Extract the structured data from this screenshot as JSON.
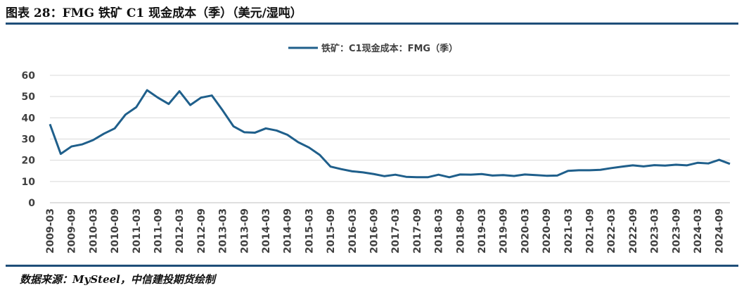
{
  "figure": {
    "title": "图表 28：FMG 铁矿 C1 现金成本（季）（美元/湿吨）",
    "source": "数据来源：MySteel，中信建投期货绘制"
  },
  "colors": {
    "line": "#1f5f8b",
    "grid": "#d9d9d9",
    "rule": "#1f4e79"
  },
  "chart_data": {
    "type": "line",
    "title": "",
    "xlabel": "",
    "ylabel": "",
    "ylim": [
      0,
      60
    ],
    "yticks": [
      0,
      10,
      20,
      30,
      40,
      50,
      60
    ],
    "grid": true,
    "legend_position": "top-center",
    "x_tick_labels": [
      "2009-03",
      "2009-09",
      "2010-03",
      "2010-09",
      "2011-03",
      "2011-09",
      "2012-03",
      "2012-09",
      "2013-03",
      "2013-09",
      "2014-03",
      "2014-09",
      "2015-03",
      "2015-09",
      "2016-03",
      "2016-09",
      "2017-03",
      "2017-09",
      "2018-03",
      "2018-09",
      "2019-03",
      "2019-09",
      "2020-03",
      "2020-09",
      "2021-03",
      "2021-09",
      "2022-03",
      "2022-09",
      "2023-03",
      "2023-09",
      "2024-03",
      "2024-09"
    ],
    "x": [
      "2009-03",
      "2009-06",
      "2009-09",
      "2009-12",
      "2010-03",
      "2010-06",
      "2010-09",
      "2010-12",
      "2011-03",
      "2011-06",
      "2011-09",
      "2011-12",
      "2012-03",
      "2012-06",
      "2012-09",
      "2012-12",
      "2013-03",
      "2013-06",
      "2013-09",
      "2013-12",
      "2014-03",
      "2014-06",
      "2014-09",
      "2014-12",
      "2015-03",
      "2015-06",
      "2015-09",
      "2015-12",
      "2016-03",
      "2016-06",
      "2016-09",
      "2016-12",
      "2017-03",
      "2017-06",
      "2017-09",
      "2017-12",
      "2018-03",
      "2018-06",
      "2018-09",
      "2018-12",
      "2019-03",
      "2019-06",
      "2019-09",
      "2019-12",
      "2020-03",
      "2020-06",
      "2020-09",
      "2020-12",
      "2021-03",
      "2021-06",
      "2021-09",
      "2021-12",
      "2022-03",
      "2022-06",
      "2022-09",
      "2022-12",
      "2023-03",
      "2023-06",
      "2023-09",
      "2023-12",
      "2024-03",
      "2024-06",
      "2024-09",
      "2024-12"
    ],
    "series": [
      {
        "name": "铁矿：C1现金成本：FMG（季）",
        "values": [
          37,
          23,
          26.5,
          27.5,
          29.5,
          32.5,
          35,
          41.5,
          45,
          53,
          49.5,
          46.5,
          52.5,
          46,
          49.5,
          50.5,
          43.5,
          36,
          33.2,
          33,
          35,
          34,
          32,
          28.5,
          26,
          22.5,
          17,
          15.8,
          14.8,
          14.3,
          13.5,
          12.5,
          13.2,
          12.2,
          12,
          12,
          13.2,
          12,
          13.3,
          13.2,
          13.5,
          12.8,
          13,
          12.6,
          13.3,
          13,
          12.7,
          12.8,
          15,
          15.3,
          15.3,
          15.5,
          16.3,
          17,
          17.6,
          17.1,
          17.7,
          17.5,
          17.9,
          17.6,
          18.8,
          18.5,
          20.2,
          18.3
        ]
      }
    ]
  }
}
